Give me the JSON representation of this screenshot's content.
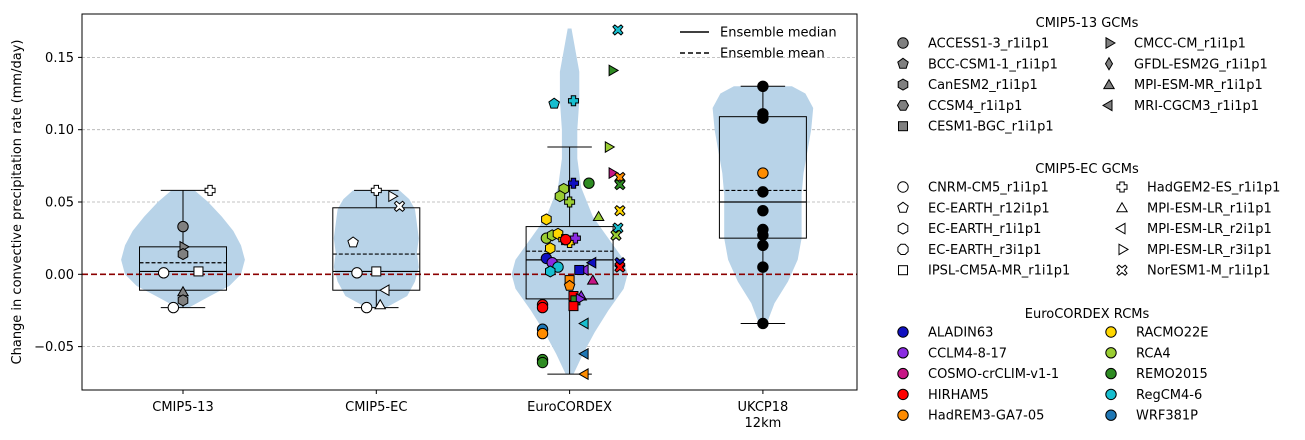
{
  "chart_data": {
    "type": "box-violin-strip",
    "ylabel": "Change in convective precipitation rate (mm/day)",
    "ylim": [
      -0.08,
      0.18
    ],
    "yticks": [
      -0.05,
      0.0,
      0.05,
      0.1,
      0.15
    ],
    "ytick_labels": [
      "−0.05",
      "0.00",
      "0.05",
      "0.10",
      "0.15"
    ],
    "grid": "horizontal dashed",
    "zero_line": {
      "y": 0.0,
      "color": "#8b0000",
      "style": "dashed"
    },
    "categories": [
      {
        "label": "CMIP5-13",
        "label2": ""
      },
      {
        "label": "CMIP5-EC",
        "label2": ""
      },
      {
        "label": "EuroCORDEX",
        "label2": ""
      },
      {
        "label": "UKCP18",
        "label2": "12km"
      }
    ],
    "boxes": [
      {
        "q1": -0.011,
        "median": 0.002,
        "q3": 0.019,
        "mean": 0.008,
        "wlo": -0.023,
        "whi": 0.058
      },
      {
        "q1": -0.011,
        "median": 0.002,
        "q3": 0.046,
        "mean": 0.014,
        "wlo": -0.023,
        "whi": 0.058
      },
      {
        "q1": -0.017,
        "median": 0.01,
        "q3": 0.033,
        "mean": 0.016,
        "wlo": -0.069,
        "whi": 0.088
      },
      {
        "q1": 0.025,
        "median": 0.05,
        "q3": 0.109,
        "mean": 0.058,
        "wlo": -0.034,
        "whi": 0.13
      }
    ],
    "violins": [
      {
        "profile": [
          [
            -0.023,
            0.03
          ],
          [
            -0.015,
            0.14
          ],
          [
            -0.008,
            0.24
          ],
          [
            0.0,
            0.3
          ],
          [
            0.01,
            0.32
          ],
          [
            0.02,
            0.3
          ],
          [
            0.03,
            0.26
          ],
          [
            0.04,
            0.2
          ],
          [
            0.05,
            0.13
          ],
          [
            0.058,
            0.06
          ]
        ]
      },
      {
        "profile": [
          [
            -0.023,
            0.05
          ],
          [
            -0.015,
            0.16
          ],
          [
            -0.005,
            0.2
          ],
          [
            0.005,
            0.22
          ],
          [
            0.015,
            0.21
          ],
          [
            0.025,
            0.22
          ],
          [
            0.035,
            0.21
          ],
          [
            0.045,
            0.2
          ],
          [
            0.052,
            0.17
          ],
          [
            0.058,
            0.12
          ]
        ]
      },
      {
        "profile": [
          [
            -0.069,
            0.02
          ],
          [
            -0.055,
            0.07
          ],
          [
            -0.04,
            0.13
          ],
          [
            -0.025,
            0.2
          ],
          [
            -0.01,
            0.28
          ],
          [
            0.0,
            0.3
          ],
          [
            0.01,
            0.28
          ],
          [
            0.025,
            0.2
          ],
          [
            0.04,
            0.12
          ],
          [
            0.06,
            0.06
          ],
          [
            0.08,
            0.04
          ],
          [
            0.1,
            0.04
          ],
          [
            0.12,
            0.05
          ],
          [
            0.14,
            0.05
          ],
          [
            0.155,
            0.03
          ],
          [
            0.17,
            0.01
          ]
        ]
      },
      {
        "profile": [
          [
            -0.034,
            0.02
          ],
          [
            -0.02,
            0.06
          ],
          [
            -0.005,
            0.13
          ],
          [
            0.01,
            0.18
          ],
          [
            0.025,
            0.2
          ],
          [
            0.04,
            0.2
          ],
          [
            0.055,
            0.2
          ],
          [
            0.07,
            0.21
          ],
          [
            0.085,
            0.23
          ],
          [
            0.1,
            0.25
          ],
          [
            0.115,
            0.26
          ],
          [
            0.125,
            0.22
          ],
          [
            0.13,
            0.15
          ]
        ]
      }
    ],
    "points": [
      [
        {
          "dx": 0.14,
          "y": 0.058,
          "m": "P",
          "c": "#ffffff"
        },
        {
          "dx": -0.1,
          "y": 0.001,
          "m": "o",
          "c": "#ffffff"
        },
        {
          "dx": -0.05,
          "y": -0.023,
          "m": "o",
          "c": "#ffffff"
        },
        {
          "dx": 0.0,
          "y": 0.033,
          "m": "o",
          "c": "#808080"
        },
        {
          "dx": 0.0,
          "y": 0.019,
          "m": ">",
          "c": "#808080"
        },
        {
          "dx": 0.0,
          "y": 0.014,
          "m": "h",
          "c": "#808080"
        },
        {
          "dx": 0.08,
          "y": 0.002,
          "m": "s",
          "c": "#ffffff"
        },
        {
          "dx": 0.0,
          "y": -0.012,
          "m": "^",
          "c": "#808080"
        },
        {
          "dx": 0.0,
          "y": -0.018,
          "m": "h",
          "c": "#808080"
        }
      ],
      [
        {
          "dx": -0.12,
          "y": 0.022,
          "m": "p",
          "c": "#ffffff"
        },
        {
          "dx": -0.1,
          "y": 0.001,
          "m": "o",
          "c": "#ffffff"
        },
        {
          "dx": -0.05,
          "y": -0.023,
          "m": "o",
          "c": "#ffffff"
        },
        {
          "dx": 0.0,
          "y": 0.002,
          "m": "s",
          "c": "#ffffff"
        },
        {
          "dx": 0.0,
          "y": 0.058,
          "m": "P",
          "c": "#ffffff"
        },
        {
          "dx": 0.08,
          "y": 0.054,
          "m": ">",
          "c": "#ffffff"
        },
        {
          "dx": 0.12,
          "y": 0.047,
          "m": "X",
          "c": "#ffffff"
        },
        {
          "dx": 0.05,
          "y": -0.011,
          "m": "<",
          "c": "#ffffff"
        },
        {
          "dx": 0.02,
          "y": -0.021,
          "m": "^",
          "c": "#ffffff"
        }
      ],
      [
        {
          "dx": 0.25,
          "y": 0.169,
          "m": "X",
          "c": "#17becf"
        },
        {
          "dx": 0.22,
          "y": 0.141,
          "m": ">",
          "c": "#2e8b22"
        },
        {
          "dx": -0.08,
          "y": 0.118,
          "m": "p",
          "c": "#17becf"
        },
        {
          "dx": 0.02,
          "y": 0.12,
          "m": "P",
          "c": "#17becf"
        },
        {
          "dx": 0.2,
          "y": 0.088,
          "m": ">",
          "c": "#9acd32"
        },
        {
          "dx": 0.22,
          "y": 0.07,
          "m": ">",
          "c": "#c71585"
        },
        {
          "dx": 0.26,
          "y": 0.067,
          "m": "X",
          "c": "#ff8c00"
        },
        {
          "dx": 0.02,
          "y": 0.063,
          "m": "P",
          "c": "#1010c0"
        },
        {
          "dx": 0.26,
          "y": 0.062,
          "m": "X",
          "c": "#2e8b22"
        },
        {
          "dx": -0.03,
          "y": 0.059,
          "m": "h",
          "c": "#9acd32"
        },
        {
          "dx": 0.1,
          "y": 0.063,
          "m": "o",
          "c": "#2e8b22"
        },
        {
          "dx": -0.05,
          "y": 0.054,
          "m": "h",
          "c": "#9acd32"
        },
        {
          "dx": 0.0,
          "y": 0.05,
          "m": "P",
          "c": "#9acd32"
        },
        {
          "dx": 0.26,
          "y": 0.044,
          "m": "X",
          "c": "#ffd700"
        },
        {
          "dx": -0.12,
          "y": 0.038,
          "m": "h",
          "c": "#ffd700"
        },
        {
          "dx": 0.15,
          "y": 0.04,
          "m": "^",
          "c": "#9acd32"
        },
        {
          "dx": 0.25,
          "y": 0.032,
          "m": "X",
          "c": "#17becf"
        },
        {
          "dx": 0.24,
          "y": 0.027,
          "m": "X",
          "c": "#9acd32"
        },
        {
          "dx": -0.12,
          "y": 0.025,
          "m": "o",
          "c": "#9acd32"
        },
        {
          "dx": -0.09,
          "y": 0.027,
          "m": "h",
          "c": "#9acd32"
        },
        {
          "dx": -0.06,
          "y": 0.028,
          "m": "h",
          "c": "#ffd700"
        },
        {
          "dx": -0.03,
          "y": 0.024,
          "m": "P",
          "c": "#ffd700"
        },
        {
          "dx": 0.0,
          "y": 0.022,
          "m": "P",
          "c": "#ffd700"
        },
        {
          "dx": 0.03,
          "y": 0.025,
          "m": "P",
          "c": "#8a2be2"
        },
        {
          "dx": -0.1,
          "y": 0.018,
          "m": "h",
          "c": "#ffd700"
        },
        {
          "dx": -0.02,
          "y": 0.024,
          "m": "o",
          "c": "#ff0000"
        },
        {
          "dx": -0.12,
          "y": 0.011,
          "m": "o",
          "c": "#1010c0"
        },
        {
          "dx": -0.09,
          "y": 0.008,
          "m": "o",
          "c": "#8a2be2"
        },
        {
          "dx": -0.06,
          "y": 0.005,
          "m": "o",
          "c": "#17becf"
        },
        {
          "dx": 0.12,
          "y": 0.008,
          "m": "<",
          "c": "#1010c0"
        },
        {
          "dx": 0.08,
          "y": 0.003,
          "m": "<",
          "c": "#8a2be2"
        },
        {
          "dx": 0.26,
          "y": 0.008,
          "m": "X",
          "c": "#1010c0"
        },
        {
          "dx": 0.26,
          "y": 0.005,
          "m": "X",
          "c": "#ff0000"
        },
        {
          "dx": -0.1,
          "y": 0.002,
          "m": "h",
          "c": "#17becf"
        },
        {
          "dx": 0.05,
          "y": 0.003,
          "m": "s",
          "c": "#1010c0"
        },
        {
          "dx": 0.0,
          "y": -0.004,
          "m": "s",
          "c": "#ff8c00"
        },
        {
          "dx": 0.0,
          "y": -0.008,
          "m": "p",
          "c": "#ff8c00"
        },
        {
          "dx": 0.12,
          "y": -0.004,
          "m": "^",
          "c": "#c71585"
        },
        {
          "dx": 0.06,
          "y": -0.015,
          "m": "^",
          "c": "#8a2be2"
        },
        {
          "dx": 0.02,
          "y": -0.015,
          "m": "s",
          "c": "#ff0000"
        },
        {
          "dx": 0.03,
          "y": -0.018,
          "m": "s",
          "c": "#2e8b22"
        },
        {
          "dx": 0.05,
          "y": -0.017,
          "m": ">",
          "c": "#8a2be2"
        },
        {
          "dx": 0.02,
          "y": -0.022,
          "m": "s",
          "c": "#ff0000"
        },
        {
          "dx": -0.14,
          "y": -0.021,
          "m": "o",
          "c": "#ff0000"
        },
        {
          "dx": -0.14,
          "y": -0.023,
          "m": "o",
          "c": "#ff0000"
        },
        {
          "dx": 0.08,
          "y": -0.034,
          "m": "<",
          "c": "#17becf"
        },
        {
          "dx": -0.14,
          "y": -0.038,
          "m": "o",
          "c": "#1f77b4"
        },
        {
          "dx": -0.14,
          "y": -0.041,
          "m": "o",
          "c": "#ff8c00"
        },
        {
          "dx": 0.08,
          "y": -0.055,
          "m": "<",
          "c": "#1f77b4"
        },
        {
          "dx": -0.14,
          "y": -0.059,
          "m": "o",
          "c": "#2e8b22"
        },
        {
          "dx": -0.14,
          "y": -0.061,
          "m": "o",
          "c": "#2e8b22"
        },
        {
          "dx": 0.08,
          "y": -0.069,
          "m": "<",
          "c": "#ff8c00"
        }
      ],
      [
        {
          "dx": 0.0,
          "y": 0.13,
          "m": "o",
          "c": "#000000"
        },
        {
          "dx": 0.0,
          "y": 0.111,
          "m": "o",
          "c": "#000000"
        },
        {
          "dx": 0.0,
          "y": 0.108,
          "m": "o",
          "c": "#000000"
        },
        {
          "dx": 0.0,
          "y": 0.07,
          "m": "o",
          "c": "#ff8c00"
        },
        {
          "dx": 0.0,
          "y": 0.057,
          "m": "o",
          "c": "#000000"
        },
        {
          "dx": 0.0,
          "y": 0.044,
          "m": "o",
          "c": "#000000"
        },
        {
          "dx": 0.0,
          "y": 0.031,
          "m": "o",
          "c": "#000000"
        },
        {
          "dx": 0.0,
          "y": 0.027,
          "m": "o",
          "c": "#000000"
        },
        {
          "dx": 0.0,
          "y": 0.02,
          "m": "o",
          "c": "#000000"
        },
        {
          "dx": 0.0,
          "y": 0.005,
          "m": "o",
          "c": "#000000"
        },
        {
          "dx": 0.0,
          "y": -0.034,
          "m": "o",
          "c": "#000000"
        }
      ]
    ],
    "inner_legend": [
      {
        "label": "Ensemble median",
        "style": "solid"
      },
      {
        "label": "Ensemble mean",
        "style": "dashed"
      }
    ],
    "legends": [
      {
        "title": "CMIP5-13 GCMs",
        "entries": [
          {
            "label": "ACCESS1-3_r1i1p1",
            "m": "o",
            "c": "#808080"
          },
          {
            "label": "BCC-CSM1-1_r1i1p1",
            "m": "p",
            "c": "#808080"
          },
          {
            "label": "CanESM2_r1i1p1",
            "m": "h",
            "c": "#808080"
          },
          {
            "label": "CCSM4_r1i1p1",
            "m": "h2",
            "c": "#808080"
          },
          {
            "label": "CESM1-BGC_r1i1p1",
            "m": "s",
            "c": "#808080"
          },
          {
            "label": "CMCC-CM_r1i1p1",
            "m": ">",
            "c": "#808080"
          },
          {
            "label": "GFDL-ESM2G_r1i1p1",
            "m": "d",
            "c": "#808080"
          },
          {
            "label": "MPI-ESM-MR_r1i1p1",
            "m": "^",
            "c": "#808080"
          },
          {
            "label": "MRI-CGCM3_r1i1p1",
            "m": "<",
            "c": "#808080"
          }
        ]
      },
      {
        "title": "CMIP5-EC GCMs",
        "entries": [
          {
            "label": "CNRM-CM5_r1i1p1",
            "m": "o",
            "c": "#ffffff"
          },
          {
            "label": "EC-EARTH_r12i1p1",
            "m": "p",
            "c": "#ffffff"
          },
          {
            "label": "EC-EARTH_r1i1p1",
            "m": "h",
            "c": "#ffffff"
          },
          {
            "label": "EC-EARTH_r3i1p1",
            "m": "8",
            "c": "#ffffff"
          },
          {
            "label": "IPSL-CM5A-MR_r1i1p1",
            "m": "s",
            "c": "#ffffff"
          },
          {
            "label": "HadGEM2-ES_r1i1p1",
            "m": "P",
            "c": "#ffffff"
          },
          {
            "label": "MPI-ESM-LR_r1i1p1",
            "m": "^",
            "c": "#ffffff"
          },
          {
            "label": "MPI-ESM-LR_r2i1p1",
            "m": "<",
            "c": "#ffffff"
          },
          {
            "label": "MPI-ESM-LR_r3i1p1",
            "m": ">",
            "c": "#ffffff"
          },
          {
            "label": "NorESM1-M_r1i1p1",
            "m": "X",
            "c": "#ffffff"
          }
        ]
      },
      {
        "title": "EuroCORDEX RCMs",
        "entries": [
          {
            "label": "ALADIN63",
            "m": "o",
            "c": "#1010c0"
          },
          {
            "label": "CCLM4-8-17",
            "m": "o",
            "c": "#8a2be2"
          },
          {
            "label": "COSMO-crCLIM-v1-1",
            "m": "o",
            "c": "#c71585"
          },
          {
            "label": "HIRHAM5",
            "m": "o",
            "c": "#ff0000"
          },
          {
            "label": "HadREM3-GA7-05",
            "m": "o",
            "c": "#ff8c00"
          },
          {
            "label": "RACMO22E",
            "m": "o",
            "c": "#ffd700"
          },
          {
            "label": "RCA4",
            "m": "o",
            "c": "#9acd32"
          },
          {
            "label": "REMO2015",
            "m": "o",
            "c": "#2e8b22"
          },
          {
            "label": "RegCM4-6",
            "m": "o",
            "c": "#17becf"
          },
          {
            "label": "WRF381P",
            "m": "o",
            "c": "#1f77b4"
          }
        ]
      }
    ],
    "colors": {
      "violin": "#b8d3e8",
      "grid": "#b0b0b0",
      "zero": "#8b0000"
    }
  }
}
